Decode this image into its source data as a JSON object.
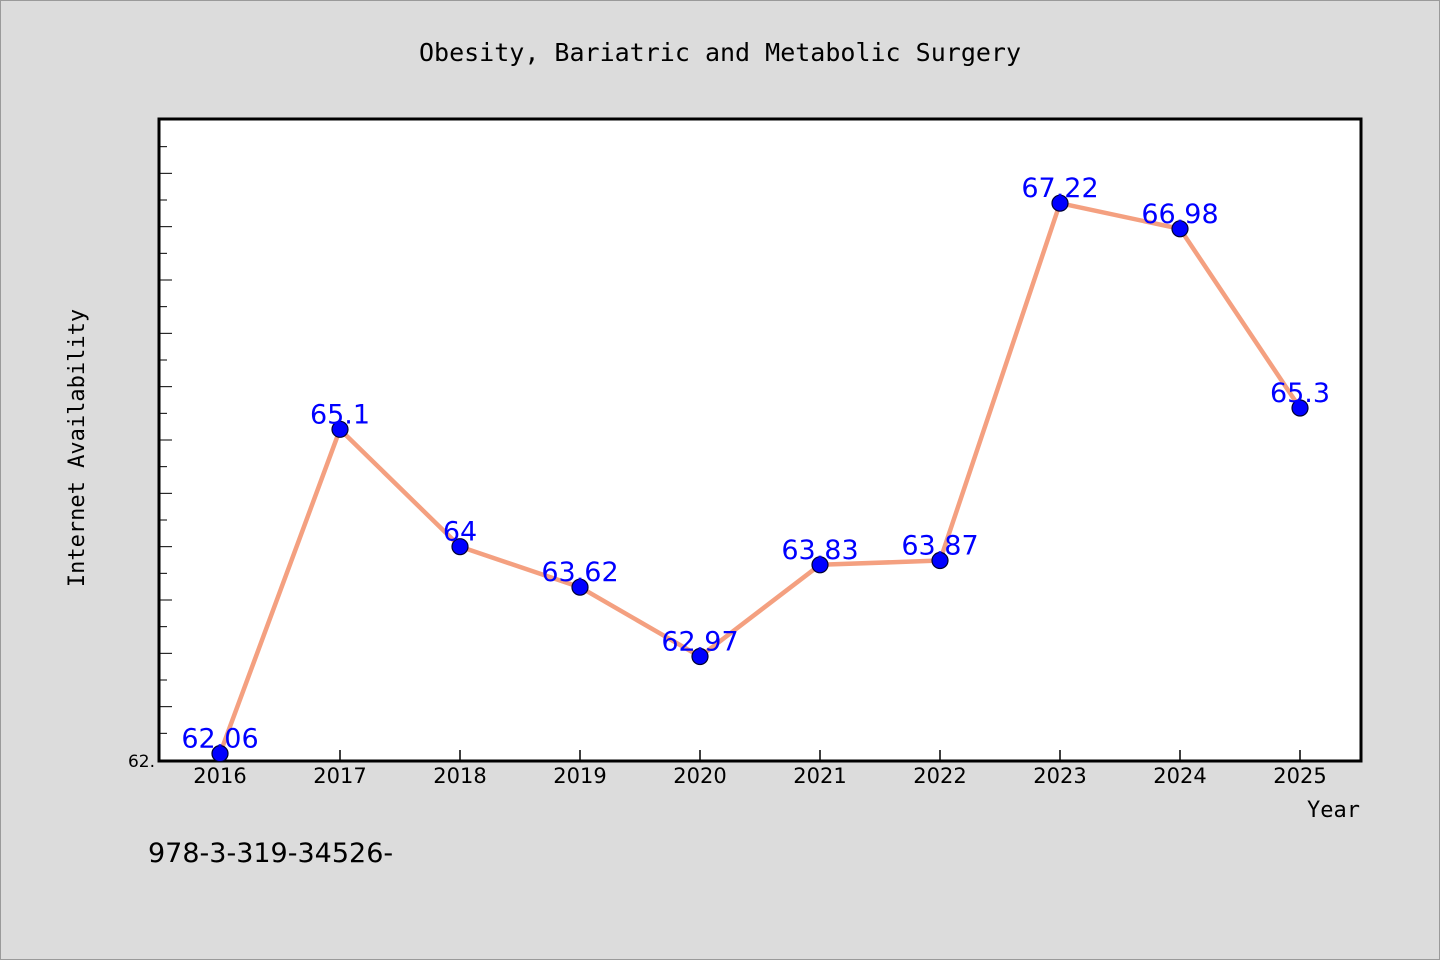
{
  "chart_data": {
    "type": "line",
    "title": "Obesity, Bariatric and Metabolic Surgery",
    "xlabel": "Year",
    "ylabel": "Internet Availability",
    "x": [
      "2016",
      "2017",
      "2018",
      "2019",
      "2020",
      "2021",
      "2022",
      "2023",
      "2024",
      "2025"
    ],
    "series": [
      {
        "values": [
          62.06,
          65.1,
          64,
          63.62,
          62.97,
          63.83,
          63.87,
          67.22,
          66.98,
          65.3
        ],
        "data_labels": [
          "62.06",
          "65.1",
          "64",
          "63.62",
          "62.97",
          "63.83",
          "63.87",
          "67.22",
          "66.98",
          "65.3"
        ]
      }
    ],
    "ytick_label": "62.",
    "ylim": [
      62.0,
      68.0
    ],
    "grid": false,
    "legend": "none",
    "footer_text": "978-3-319-34526-",
    "colors": {
      "background": "#dcdcdc",
      "plot_background": "#ffffff",
      "line": "#f4a080",
      "marker": "#0000ff",
      "data_label": "#0000ff",
      "axis": "#000000"
    }
  }
}
